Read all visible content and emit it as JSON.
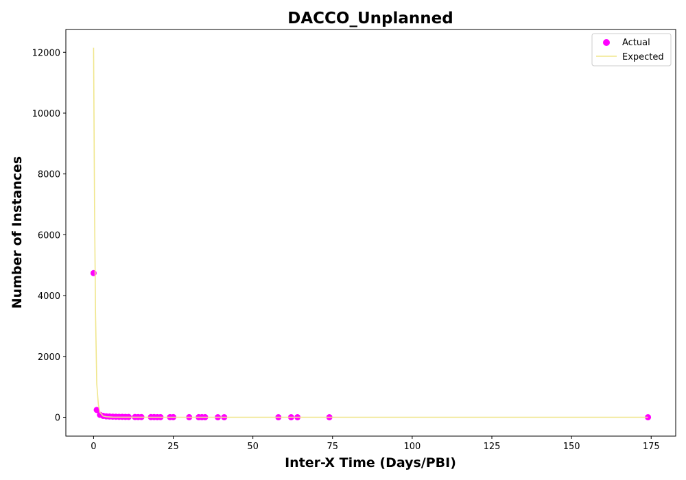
{
  "chart_data": {
    "type": "scatter",
    "title": "DACCO_Unplanned",
    "xlabel": "Inter-X Time (Days/PBI)",
    "ylabel": "Number of Instances",
    "xlim": [
      -8.7,
      182.7
    ],
    "ylim": [
      -620,
      12750
    ],
    "xticks": [
      0,
      25,
      50,
      75,
      100,
      125,
      150,
      175
    ],
    "yticks": [
      0,
      2000,
      4000,
      6000,
      8000,
      10000,
      12000
    ],
    "grid": false,
    "legend_position": "top-right",
    "series": [
      {
        "name": "Actual",
        "kind": "scatter",
        "color": "#ff00ff",
        "points": [
          [
            0,
            4740
          ],
          [
            1,
            240
          ],
          [
            2,
            80
          ],
          [
            3,
            45
          ],
          [
            4,
            30
          ],
          [
            5,
            25
          ],
          [
            6,
            20
          ],
          [
            7,
            18
          ],
          [
            8,
            15
          ],
          [
            9,
            14
          ],
          [
            10,
            12
          ],
          [
            11,
            10
          ],
          [
            13,
            8
          ],
          [
            14,
            7
          ],
          [
            15,
            6
          ],
          [
            18,
            5
          ],
          [
            19,
            5
          ],
          [
            20,
            4
          ],
          [
            21,
            4
          ],
          [
            24,
            3
          ],
          [
            25,
            3
          ],
          [
            30,
            2
          ],
          [
            33,
            2
          ],
          [
            34,
            2
          ],
          [
            35,
            2
          ],
          [
            39,
            1
          ],
          [
            41,
            1
          ],
          [
            58,
            1
          ],
          [
            62,
            1
          ],
          [
            64,
            1
          ],
          [
            74,
            1
          ],
          [
            174,
            1
          ]
        ]
      },
      {
        "name": "Expected",
        "kind": "line",
        "color": "#f0e68c",
        "points": [
          [
            0,
            12150
          ],
          [
            0.3,
            7000
          ],
          [
            0.6,
            3500
          ],
          [
            1,
            1100
          ],
          [
            1.5,
            420
          ],
          [
            2,
            160
          ],
          [
            3,
            40
          ],
          [
            4,
            15
          ],
          [
            6,
            5
          ],
          [
            10,
            1
          ],
          [
            20,
            0
          ],
          [
            50,
            0
          ],
          [
            100,
            0
          ],
          [
            174,
            0
          ]
        ]
      }
    ]
  }
}
